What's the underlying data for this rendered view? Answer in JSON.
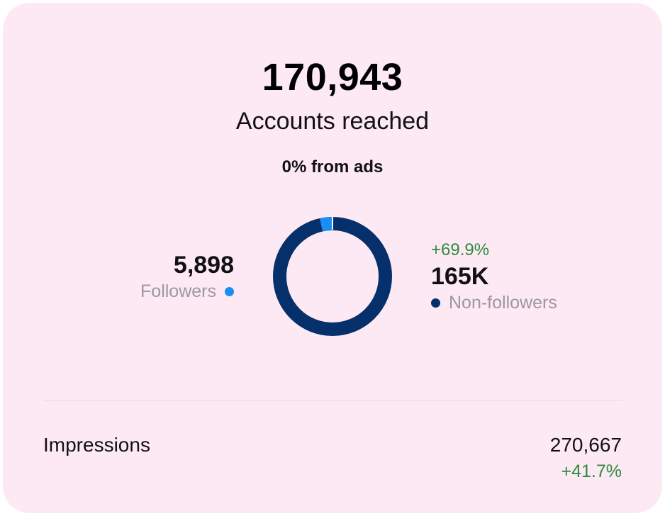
{
  "summary": {
    "total": "170,943",
    "label": "Accounts reached",
    "ads_note": "0% from ads"
  },
  "breakdown": {
    "followers": {
      "value": "5,898",
      "label": "Followers",
      "raw": 5898,
      "color": "#1a8ef2"
    },
    "non_followers": {
      "delta": "+69.9%",
      "value": "165K",
      "label": "Non-followers",
      "raw": 165045,
      "color": "#06306b"
    }
  },
  "impressions": {
    "label": "Impressions",
    "value": "270,667",
    "delta": "+41.7%"
  },
  "colors": {
    "card_background": "#fde9f4",
    "positive": "#2e8b3c",
    "muted_text": "#9d96a2"
  }
}
